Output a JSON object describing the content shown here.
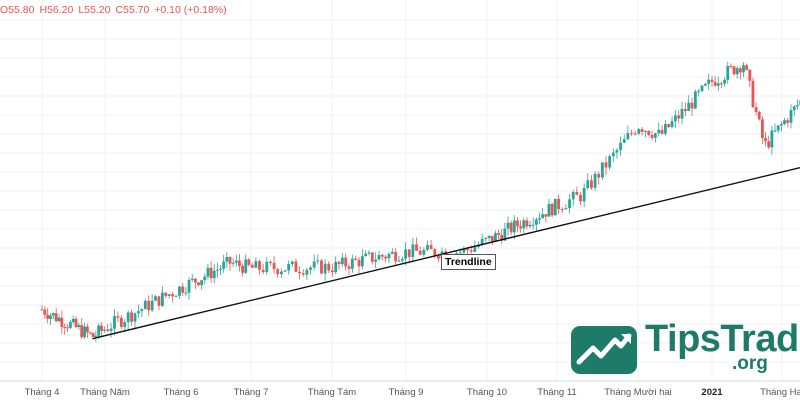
{
  "header": {
    "open": "O55.80",
    "high": "H56.20",
    "low": "L55.20",
    "close": "C55.70",
    "change": "+0.10 (+0.18%)"
  },
  "annotation": {
    "trendline_label": "Trendline"
  },
  "logo": {
    "word": "TipsTrade",
    "sub": ".org"
  },
  "colors": {
    "up": "#26a69a",
    "down": "#ef5350",
    "grid": "#eef0f3",
    "brand": "#1e7a69"
  },
  "chart_data": {
    "type": "candlestick",
    "x_tick_labels": [
      "Tháng 4",
      "Tháng Năm",
      "Tháng 6",
      "Tháng 7",
      "Tháng Tám",
      "Tháng 9",
      "Tháng 10",
      "Tháng 11",
      "Tháng Mười hai",
      "2021",
      "Tháng Hai"
    ],
    "price_anchors": [
      {
        "x": 0.0,
        "y": 51.5
      },
      {
        "x": 0.8,
        "y": 49.0
      },
      {
        "x": 2.0,
        "y": 53.5
      },
      {
        "x": 2.7,
        "y": 55.8
      },
      {
        "x": 3.0,
        "y": 55.3
      },
      {
        "x": 4.0,
        "y": 55.4
      },
      {
        "x": 4.5,
        "y": 56.2
      },
      {
        "x": 5.0,
        "y": 56.8
      },
      {
        "x": 5.7,
        "y": 56.8
      },
      {
        "x": 6.5,
        "y": 59.5
      },
      {
        "x": 7.3,
        "y": 62.0
      },
      {
        "x": 8.0,
        "y": 68.5
      },
      {
        "x": 8.3,
        "y": 67.5
      },
      {
        "x": 9.0,
        "y": 72.5
      },
      {
        "x": 9.45,
        "y": 74.2
      },
      {
        "x": 9.75,
        "y": 66.5
      },
      {
        "x": 10.3,
        "y": 71.0
      }
    ],
    "trendline": {
      "from": {
        "x": 0.8,
        "y": 48.8
      },
      "to": {
        "x": 10.4,
        "y": 64.8
      }
    },
    "ylim": [
      45,
      80
    ],
    "grid": true
  }
}
